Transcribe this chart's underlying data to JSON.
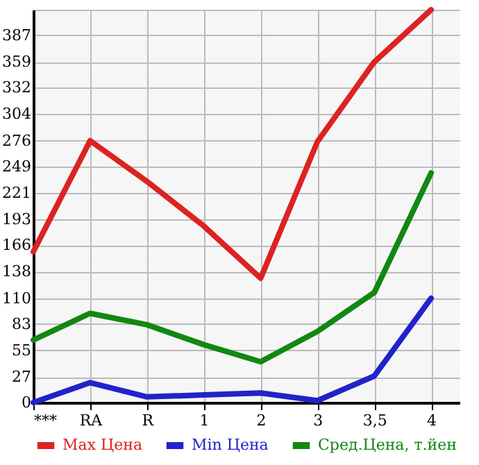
{
  "chart_data": {
    "type": "line",
    "categories": [
      "***",
      "RA",
      "R",
      "1",
      "2",
      "3",
      "3,5",
      "4"
    ],
    "series": [
      {
        "name": "Max Цена",
        "color": "#dd2222",
        "values": [
          159,
          276,
          233,
          186,
          131,
          275,
          359,
          414
        ]
      },
      {
        "name": "Min Цена",
        "color": "#2222cc",
        "values": [
          0,
          21,
          6,
          8,
          10,
          2,
          28,
          110
        ]
      },
      {
        "name": "Сред.Цена, т.йен",
        "color": "#118811",
        "values": [
          66,
          94,
          82,
          61,
          43,
          75,
          116,
          242
        ]
      }
    ],
    "ylim": [
      0,
      414
    ],
    "yticks": [
      0,
      27,
      55,
      83,
      110,
      138,
      166,
      193,
      221,
      249,
      276,
      304,
      332,
      359,
      387,
      {
        "value": 414,
        "label": null
      }
    ],
    "grid": true,
    "legend": "bottom",
    "marker": "none",
    "line_style": "solid"
  }
}
